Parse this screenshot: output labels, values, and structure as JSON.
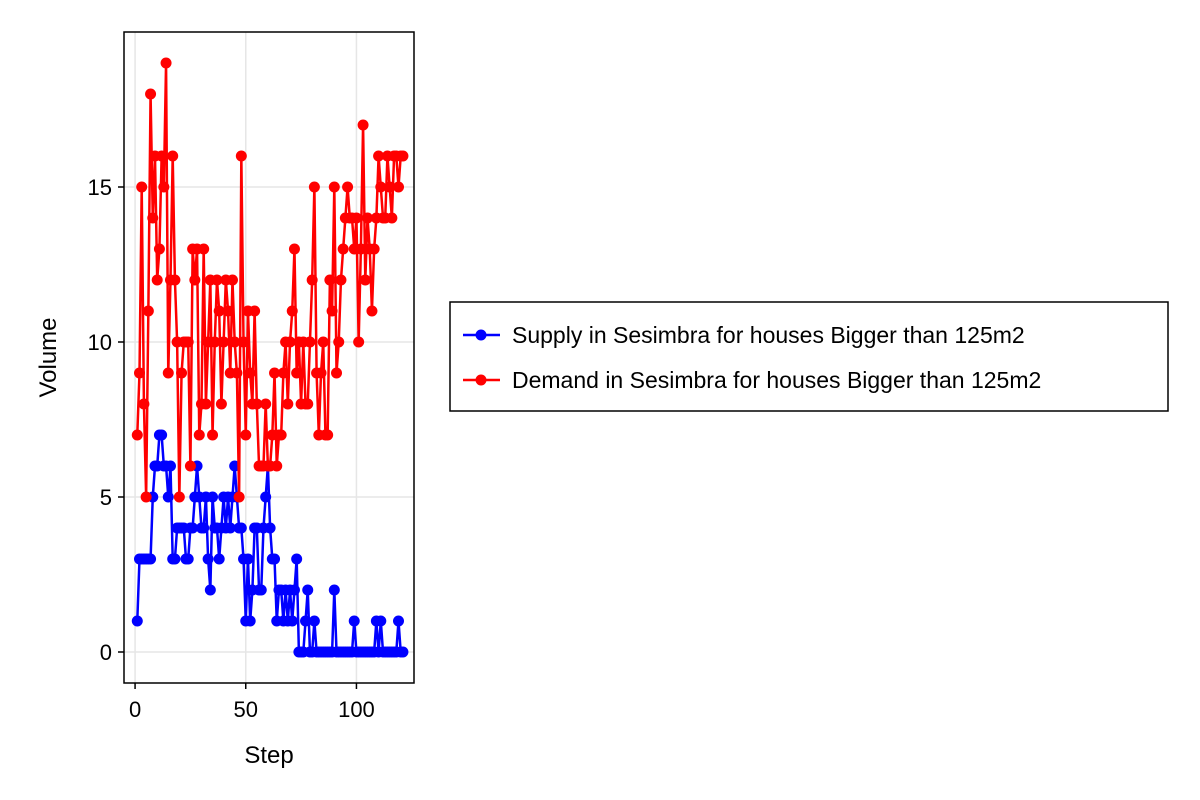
{
  "chart_data": {
    "type": "line",
    "xlabel": "Step",
    "ylabel": "Volume",
    "xlim": [
      -5,
      126
    ],
    "ylim": [
      -1,
      20
    ],
    "xticks": [
      0,
      50,
      100
    ],
    "yticks": [
      0,
      5,
      10,
      15
    ],
    "x_tick_labels": [
      "0",
      "50",
      "100"
    ],
    "y_tick_labels": [
      "0",
      "5",
      "10",
      "15"
    ],
    "grid": true,
    "legend_position": "right",
    "x": [
      1,
      2,
      3,
      4,
      5,
      6,
      7,
      8,
      9,
      10,
      11,
      12,
      13,
      14,
      15,
      16,
      17,
      18,
      19,
      20,
      21,
      22,
      23,
      24,
      25,
      26,
      27,
      28,
      29,
      30,
      31,
      32,
      33,
      34,
      35,
      36,
      37,
      38,
      39,
      40,
      41,
      42,
      43,
      44,
      45,
      46,
      47,
      48,
      49,
      50,
      51,
      52,
      53,
      54,
      55,
      56,
      57,
      58,
      59,
      60,
      61,
      62,
      63,
      64,
      65,
      66,
      67,
      68,
      69,
      70,
      71,
      72,
      73,
      74,
      75,
      76,
      77,
      78,
      79,
      80,
      81,
      82,
      83,
      84,
      85,
      86,
      87,
      88,
      89,
      90,
      91,
      92,
      93,
      94,
      95,
      96,
      97,
      98,
      99,
      100,
      101,
      102,
      103,
      104,
      105,
      106,
      107,
      108,
      109,
      110,
      111,
      112,
      113,
      114,
      115,
      116,
      117,
      118,
      119,
      120,
      121
    ],
    "series": [
      {
        "name": "Supply in Sesimbra for houses Bigger than 125m2",
        "color": "#0000ff",
        "values": [
          1,
          3,
          3,
          3,
          3,
          3,
          3,
          5,
          6,
          6,
          7,
          7,
          6,
          6,
          5,
          6,
          3,
          3,
          4,
          4,
          4,
          4,
          3,
          3,
          4,
          4,
          5,
          6,
          5,
          4,
          4,
          5,
          3,
          2,
          5,
          4,
          4,
          3,
          4,
          5,
          4,
          5,
          4,
          5,
          6,
          5,
          4,
          4,
          3,
          1,
          3,
          1,
          2,
          4,
          4,
          2,
          2,
          4,
          5,
          6,
          4,
          3,
          3,
          1,
          2,
          2,
          1,
          2,
          1,
          2,
          1,
          2,
          3,
          0,
          0,
          0,
          1,
          2,
          0,
          0,
          1,
          0,
          0,
          0,
          0,
          0,
          0,
          0,
          0,
          2,
          0,
          0,
          0,
          0,
          0,
          0,
          0,
          0,
          1,
          0,
          0,
          0,
          0,
          0,
          0,
          0,
          0,
          0,
          1,
          0,
          1,
          0,
          0,
          0,
          0,
          0,
          0,
          0,
          1,
          0,
          0
        ]
      },
      {
        "name": "Demand in Sesimbra for houses Bigger than 125m2",
        "color": "#ff0000",
        "values": [
          7,
          9,
          15,
          8,
          5,
          11,
          18,
          14,
          16,
          12,
          13,
          16,
          15,
          19,
          9,
          12,
          16,
          12,
          10,
          5,
          9,
          10,
          10,
          10,
          6,
          13,
          12,
          13,
          7,
          8,
          13,
          8,
          10,
          12,
          7,
          10,
          12,
          11,
          8,
          10,
          12,
          11,
          9,
          12,
          10,
          9,
          5,
          16,
          10,
          7,
          11,
          9,
          8,
          11,
          8,
          6,
          6,
          6,
          8,
          6,
          6,
          7,
          9,
          6,
          7,
          7,
          9,
          10,
          8,
          10,
          11,
          13,
          9,
          10,
          8,
          10,
          8,
          8,
          10,
          12,
          15,
          9,
          7,
          9,
          10,
          7,
          7,
          12,
          11,
          15,
          9,
          10,
          12,
          13,
          14,
          15,
          14,
          14,
          13,
          14,
          10,
          13,
          17,
          12,
          14,
          13,
          11,
          13,
          14,
          16,
          15,
          14,
          14,
          16,
          15,
          14,
          16,
          16,
          15,
          16,
          16
        ]
      }
    ]
  }
}
